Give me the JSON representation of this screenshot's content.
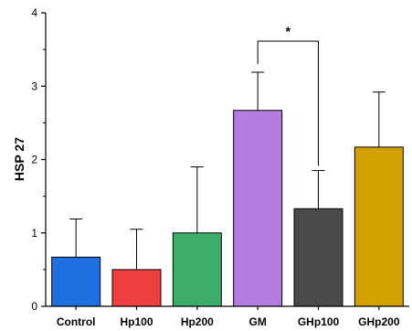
{
  "chart_data": {
    "type": "bar",
    "title": "",
    "xlabel": "",
    "ylabel": "HSP 27",
    "ylim": [
      0,
      4
    ],
    "yticks": [
      "0",
      "1",
      "2",
      "3",
      "4"
    ],
    "grid": false,
    "categories": [
      "Control",
      "Hp100",
      "Hp200",
      "GM",
      "GHp100",
      "GHp200"
    ],
    "values": [
      0.67,
      0.5,
      1.0,
      2.67,
      1.33,
      2.17
    ],
    "errors": [
      0.52,
      0.55,
      0.9,
      0.52,
      0.52,
      0.75
    ],
    "colors": [
      "#1e6fe0",
      "#ee4040",
      "#3aae6a",
      "#b57ce0",
      "#4a4a4a",
      "#d4a000"
    ],
    "significance": [
      {
        "from": "GM",
        "to": "GHp100",
        "label": "*"
      }
    ]
  }
}
